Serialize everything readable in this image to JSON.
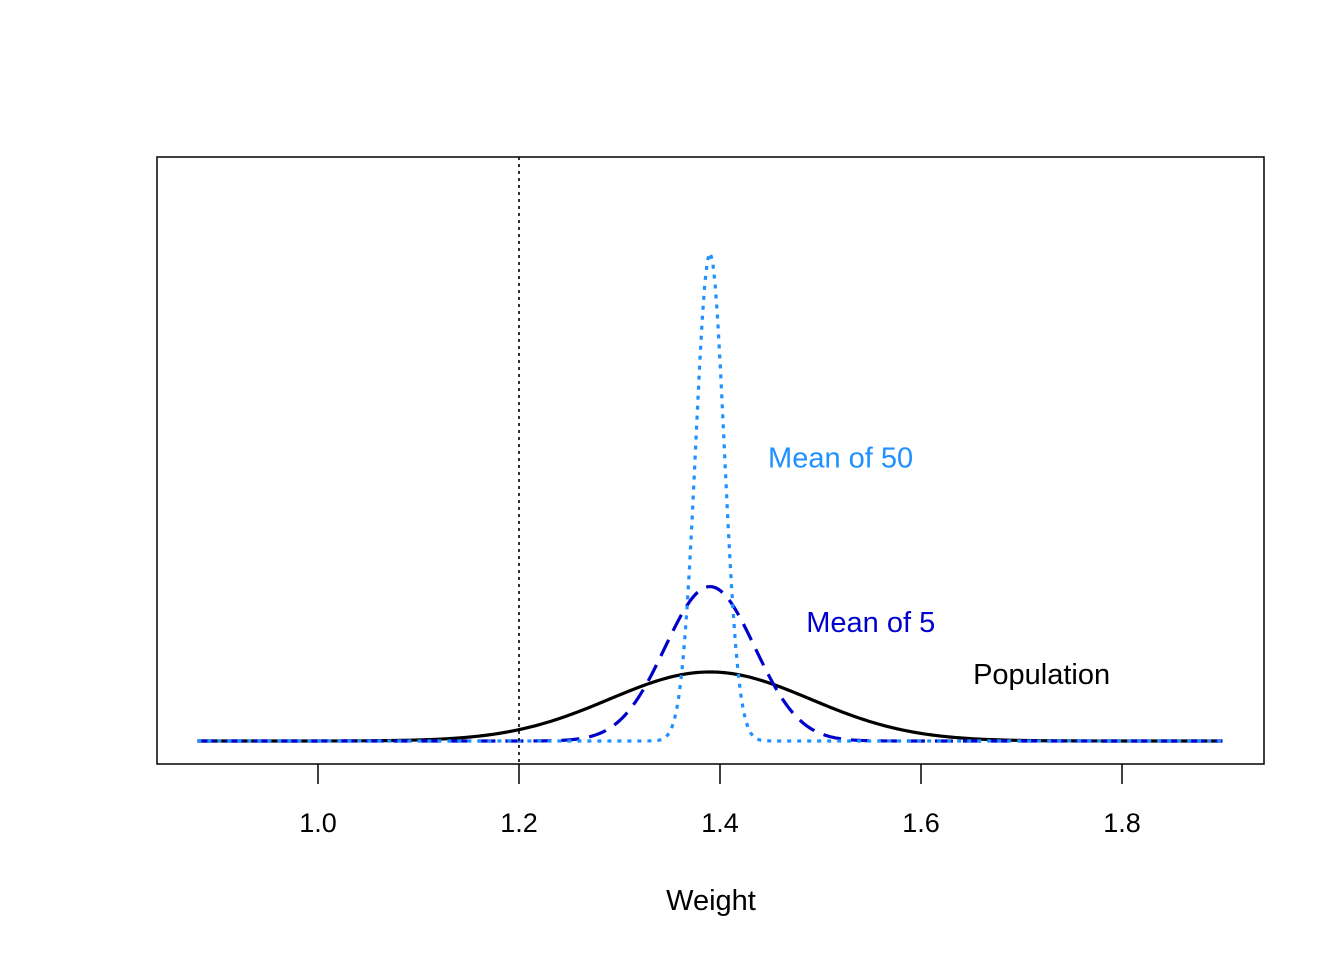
{
  "chart_data": {
    "type": "line",
    "title": "",
    "xlabel": "Weight",
    "ylabel": "",
    "xlim": [
      0.88,
      1.9
    ],
    "x_ticks": [
      "1.0",
      "1.2",
      "1.4",
      "1.6",
      "1.8"
    ],
    "y_axis_shown": false,
    "grid": false,
    "legend": "none",
    "reference_line": {
      "x": 1.2,
      "style": "dotted",
      "color": "#000000"
    },
    "series": [
      {
        "name": "Population",
        "distribution": "normal",
        "mean": 1.39,
        "sd": 0.1,
        "peak_density": 3.99,
        "color": "#000000",
        "style": "solid",
        "label": "Population",
        "label_anchor": [
          1.72,
          3.3
        ]
      },
      {
        "name": "Mean of 5",
        "distribution": "normal",
        "mean": 1.39,
        "sd": 0.0447,
        "peak_density": 8.92,
        "color": "#0000CD",
        "style": "dashed",
        "label": "Mean of 5",
        "label_anchor": [
          1.55,
          6.3
        ]
      },
      {
        "name": "Mean of 50",
        "distribution": "normal",
        "mean": 1.39,
        "sd": 0.01414,
        "peak_density": 28.2,
        "color": "#1E90FF",
        "style": "dotted",
        "label": "Mean of 50",
        "label_anchor": [
          1.52,
          15.8
        ]
      }
    ]
  }
}
